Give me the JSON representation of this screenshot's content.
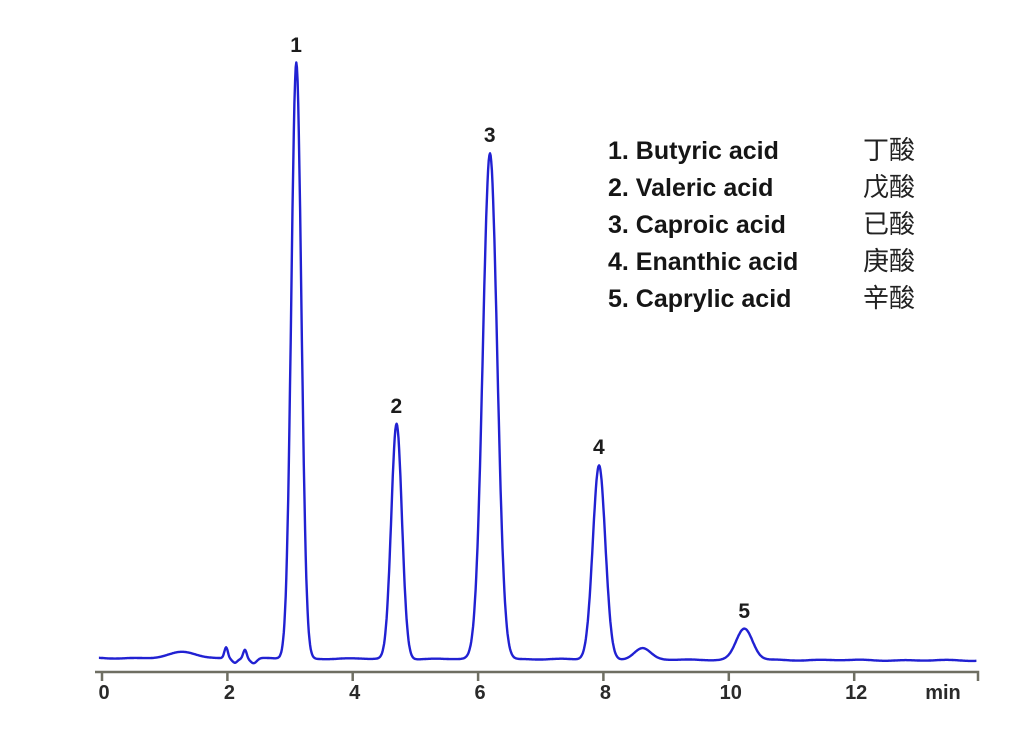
{
  "figure": {
    "background_color": "#ffffff"
  },
  "chart_data": {
    "type": "line",
    "title": "",
    "subtitle": "",
    "xlabel": "min",
    "ylabel": "",
    "x_ticks": [
      0,
      2,
      4,
      6,
      8,
      10,
      12
    ],
    "x_range": [
      -0.05,
      13.95
    ],
    "grid": "off",
    "legend_position": "upper-right",
    "trace_color": "#2121d2",
    "axis_color": "#6e6e62",
    "tick_label_color": "#2a2a2a",
    "peaks": [
      {
        "num": "1",
        "name_en": "Butyric acid",
        "name_zh": "丁酸",
        "retention_min": 3.1,
        "intensity": 596,
        "sigma_min": 0.08
      },
      {
        "num": "2",
        "name_en": "Valeric acid",
        "name_zh": "戊酸",
        "retention_min": 4.7,
        "intensity": 235,
        "sigma_min": 0.085
      },
      {
        "num": "3",
        "name_en": "Caproic acid",
        "name_zh": "已酸",
        "retention_min": 6.19,
        "intensity": 506,
        "sigma_min": 0.115
      },
      {
        "num": "4",
        "name_en": "Enanthic acid",
        "name_zh": "庚酸",
        "retention_min": 7.93,
        "intensity": 194,
        "sigma_min": 0.1
      },
      {
        "num": "5",
        "name_en": "Caprylic acid",
        "name_zh": "辛酸",
        "retention_min": 10.25,
        "intensity": 31,
        "sigma_min": 0.13
      }
    ],
    "minor_features": [
      {
        "retention_min": 1.3,
        "intensity": 6,
        "sigma_min": 0.22
      },
      {
        "retention_min": 1.98,
        "intensity": 11,
        "sigma_min": 0.028
      },
      {
        "retention_min": 2.12,
        "intensity": -4,
        "sigma_min": 0.04
      },
      {
        "retention_min": 2.28,
        "intensity": 9,
        "sigma_min": 0.028
      },
      {
        "retention_min": 2.42,
        "intensity": -5,
        "sigma_min": 0.05
      },
      {
        "retention_min": 8.62,
        "intensity": 11,
        "sigma_min": 0.13
      }
    ]
  },
  "legend": {
    "items": [
      {
        "en": "1. Butyric acid",
        "zh": "丁酸"
      },
      {
        "en": "2. Valeric acid",
        "zh": "戊酸"
      },
      {
        "en": "3. Caproic acid",
        "zh": "已酸"
      },
      {
        "en": "4. Enanthic acid",
        "zh": "庚酸"
      },
      {
        "en": "5. Caprylic acid",
        "zh": "辛酸"
      }
    ]
  },
  "axis": {
    "unit_label": "min"
  }
}
